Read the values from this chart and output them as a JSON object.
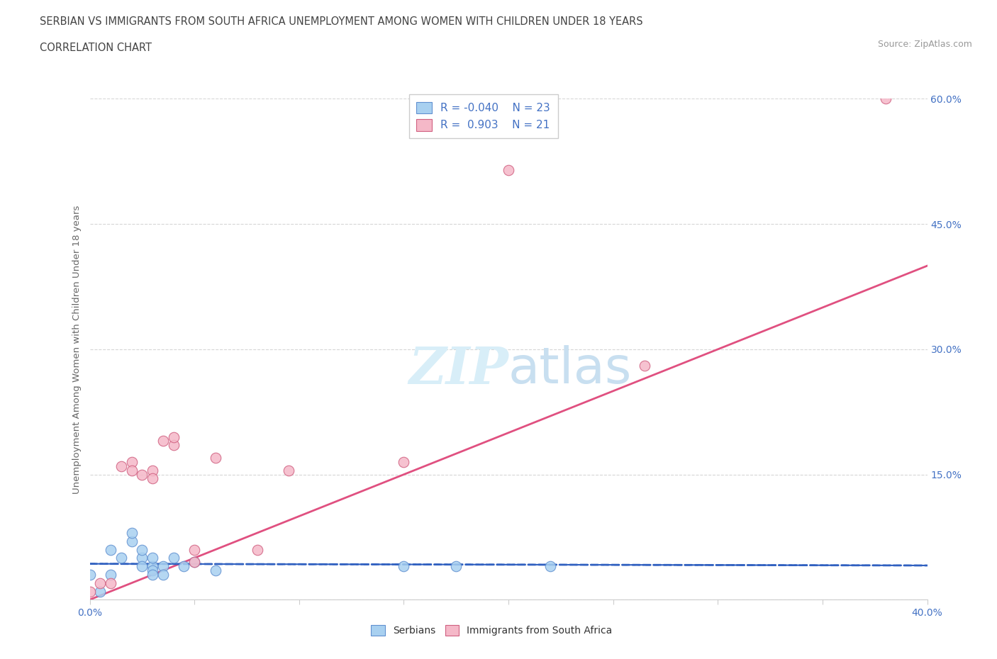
{
  "title_line1": "SERBIAN VS IMMIGRANTS FROM SOUTH AFRICA UNEMPLOYMENT AMONG WOMEN WITH CHILDREN UNDER 18 YEARS",
  "title_line2": "CORRELATION CHART",
  "source_text": "Source: ZipAtlas.com",
  "ylabel": "Unemployment Among Women with Children Under 18 years",
  "xlim": [
    0.0,
    0.4
  ],
  "ylim": [
    0.0,
    0.6
  ],
  "xticks": [
    0.0,
    0.05,
    0.1,
    0.15,
    0.2,
    0.25,
    0.3,
    0.35,
    0.4
  ],
  "ytick_positions": [
    0.0,
    0.15,
    0.3,
    0.45,
    0.6
  ],
  "ytick_labels": [
    "",
    "15.0%",
    "30.0%",
    "45.0%",
    "60.0%"
  ],
  "serbian_R": -0.04,
  "serbian_N": 23,
  "sa_R": 0.903,
  "sa_N": 21,
  "serbian_color": "#A8D0F0",
  "sa_color": "#F5B8C8",
  "serbian_line_color": "#3060C0",
  "sa_line_color": "#E05080",
  "legend_color_blue": "#A8D0F0",
  "legend_color_pink": "#F5B8C8",
  "watermark_color": "#D8EEF8",
  "serbian_x": [
    0.0,
    0.005,
    0.01,
    0.01,
    0.015,
    0.02,
    0.02,
    0.025,
    0.025,
    0.025,
    0.03,
    0.03,
    0.03,
    0.03,
    0.035,
    0.035,
    0.04,
    0.045,
    0.05,
    0.06,
    0.15,
    0.175,
    0.22
  ],
  "serbian_y": [
    0.03,
    0.01,
    0.06,
    0.03,
    0.05,
    0.07,
    0.08,
    0.05,
    0.06,
    0.04,
    0.04,
    0.035,
    0.05,
    0.03,
    0.04,
    0.03,
    0.05,
    0.04,
    0.045,
    0.035,
    0.04,
    0.04,
    0.04
  ],
  "sa_x": [
    0.0,
    0.005,
    0.01,
    0.015,
    0.02,
    0.02,
    0.025,
    0.03,
    0.03,
    0.035,
    0.04,
    0.04,
    0.05,
    0.05,
    0.06,
    0.08,
    0.095,
    0.15,
    0.2,
    0.265,
    0.38
  ],
  "sa_y": [
    0.01,
    0.02,
    0.02,
    0.16,
    0.165,
    0.155,
    0.15,
    0.155,
    0.145,
    0.19,
    0.185,
    0.195,
    0.045,
    0.06,
    0.17,
    0.06,
    0.155,
    0.165,
    0.515,
    0.28,
    0.6
  ]
}
